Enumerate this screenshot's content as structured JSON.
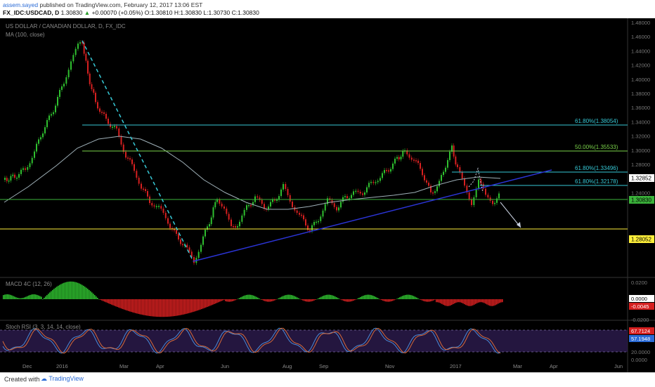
{
  "header": {
    "user": "assem.sayed",
    "published": "published on TradingView.com, February 12, 2017 13:06 EST",
    "symbol": "FX_IDC:USDCAD, D",
    "last": "1.30830",
    "change": "+0.00070 (+0.05%)",
    "o_label": "O:",
    "o_value": "1.30810",
    "h_label": "H:",
    "h_value": "1.30830",
    "l_label": "L:",
    "l_value": "1.30730",
    "c_label": "C:",
    "c_value": "1.30830"
  },
  "chart": {
    "title": "US DOLLAR / CANADIAN DOLLAR, D, FX_IDC",
    "ma_label": "MA (100, close)",
    "price_ticks": [
      "1.48000",
      "1.46000",
      "1.44000",
      "1.42000",
      "1.40000",
      "1.38000",
      "1.36000",
      "1.34000",
      "1.32000",
      "1.30000",
      "1.28000",
      "1.26000",
      "1.24000"
    ],
    "price_badges": [
      {
        "text": "1.32852",
        "bg": "#ffffff",
        "fg": "#000000"
      },
      {
        "text": "1.30830",
        "bg": "#3bb33b",
        "fg": "#000000"
      },
      {
        "text": "1.28052",
        "bg": "#ffef3a",
        "fg": "#000000"
      }
    ],
    "fib_labels": [
      {
        "text": "61.80%(1.38054)",
        "color": "#36c9d6"
      },
      {
        "text": "50.00%(1.35533)",
        "color": "#7ad34a"
      },
      {
        "text": "61.80%(1.33496)",
        "color": "#36c9d6"
      },
      {
        "text": "61.80%(1.32178)",
        "color": "#36c9d6"
      }
    ],
    "x_labels": [
      "Dec",
      "2016",
      "Mar",
      "Apr",
      "Jun",
      "Aug",
      "Sep",
      "Nov",
      "2017",
      "Mar",
      "Apr",
      "Jun"
    ],
    "colors": {
      "bull": "#2fbf2f",
      "bear": "#d62020",
      "ma": "#9fb0b8",
      "fib_cyan": "#36c9d6",
      "fib_green": "#7ad34a",
      "yellow": "#ffef3a",
      "trend": "#2b34d6"
    }
  },
  "macd": {
    "label": "MACD 4C (12, 26)",
    "ticks": [
      "0.0200",
      "0.0000",
      "-0.0200"
    ],
    "badges": [
      {
        "text": "0.0000",
        "bg": "#ffffff",
        "fg": "#000000"
      },
      {
        "text": "-0.0045",
        "bg": "#d62020",
        "fg": "#ffffff"
      }
    ]
  },
  "stoch": {
    "label": "Stoch RSI (3, 3, 14, 14, close)",
    "ticks": [
      "80.0000",
      "20.0000",
      "0.0000"
    ],
    "badges": [
      {
        "text": "67.7124",
        "bg": "#d62020",
        "fg": "#ffffff"
      },
      {
        "text": "57.1948",
        "bg": "#2a6bd6",
        "fg": "#ffffff"
      }
    ]
  },
  "footer": {
    "created": "Created with",
    "brand": "TradingView"
  }
}
